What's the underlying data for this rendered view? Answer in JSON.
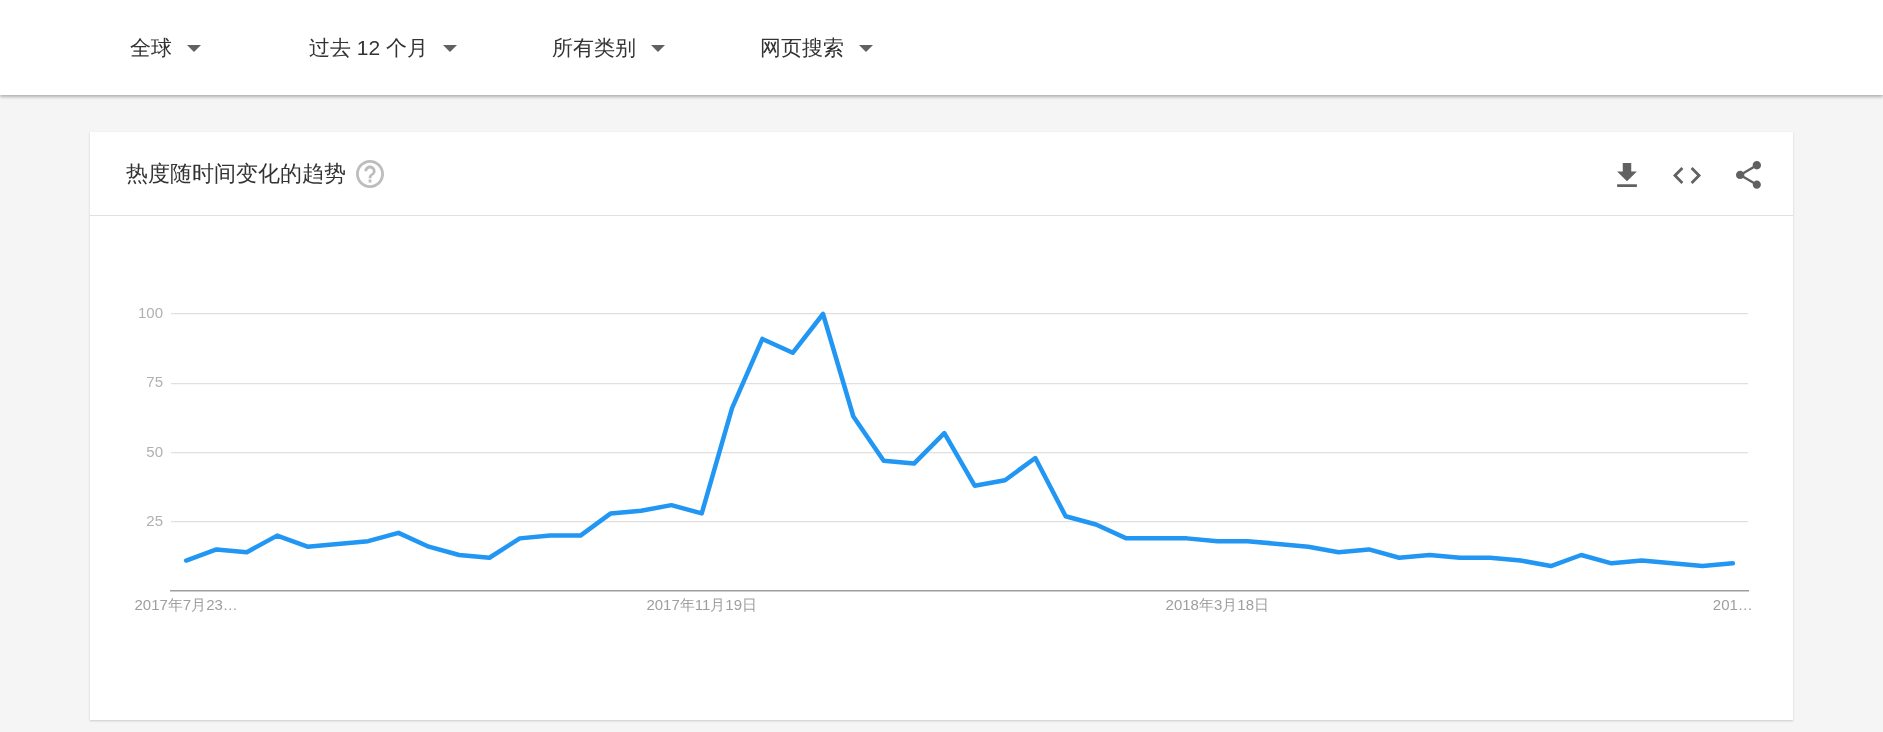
{
  "chart_data": {
    "type": "line",
    "title": "热度随时间变化的趋势",
    "annotations": [
      "全球",
      "过去 12 个月",
      "所有类别",
      "网页搜索"
    ],
    "categories": [
      "2017年7月23…",
      null,
      null,
      null,
      null,
      null,
      null,
      null,
      null,
      null,
      null,
      null,
      null,
      null,
      null,
      null,
      null,
      "2017年11月19日",
      null,
      null,
      null,
      null,
      null,
      null,
      null,
      null,
      null,
      null,
      null,
      null,
      null,
      null,
      null,
      null,
      "2018年3月18日",
      null,
      null,
      null,
      null,
      null,
      null,
      null,
      null,
      null,
      null,
      null,
      null,
      null,
      null,
      null,
      null,
      "201…"
    ],
    "series": [
      {
        "color": "#2196f3",
        "values": [
          11,
          15,
          14,
          20,
          16,
          17,
          18,
          21,
          16,
          13,
          12,
          19,
          20,
          20,
          28,
          29,
          31,
          28,
          66,
          91,
          86,
          100,
          63,
          47,
          46,
          57,
          38,
          40,
          48,
          27,
          24,
          19,
          19,
          19,
          18,
          18,
          17,
          16,
          14,
          15,
          12,
          13,
          12,
          12,
          11,
          9,
          13,
          10,
          11,
          10,
          9,
          10
        ]
      }
    ],
    "ylim": [
      0,
      100
    ],
    "yticks": [
      25,
      50,
      75,
      100
    ],
    "grid": "y",
    "marker": "none",
    "line_style": "solid"
  }
}
